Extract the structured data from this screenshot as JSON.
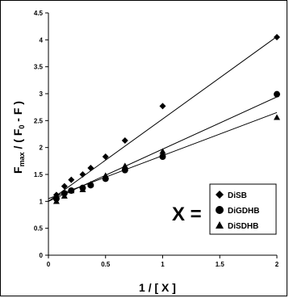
{
  "chart_data": {
    "type": "scatter",
    "xlabel": "1 / [ X ]",
    "ylabel_parts": {
      "f1": "F",
      "f1_sub": "max",
      "mid": " / ( F",
      "f2_sub": "0",
      "end": " - F )"
    },
    "xlim": [
      0,
      2
    ],
    "ylim": [
      0,
      4.5
    ],
    "x_ticks": [
      "0",
      "0.5",
      "1",
      "1.5",
      "2"
    ],
    "y_ticks": [
      "0",
      "0.5",
      "1",
      "1.5",
      "2",
      "2.5",
      "3",
      "3.5",
      "4",
      "4.5"
    ],
    "grid": false,
    "legend_position": "lower-right",
    "legend_prefix": "X =",
    "series": [
      {
        "name": "DiSB",
        "marker": "diamond",
        "points": [
          [
            0.07,
            1.12
          ],
          [
            0.14,
            1.28
          ],
          [
            0.2,
            1.4
          ],
          [
            0.3,
            1.5
          ],
          [
            0.37,
            1.62
          ],
          [
            0.5,
            1.83
          ],
          [
            0.67,
            2.13
          ],
          [
            1.0,
            2.77
          ],
          [
            2.0,
            4.05
          ]
        ],
        "fit": {
          "intercept": 1.0,
          "slope": 1.53
        }
      },
      {
        "name": "DiGDHB",
        "marker": "circle",
        "points": [
          [
            0.07,
            1.05
          ],
          [
            0.14,
            1.15
          ],
          [
            0.2,
            1.2
          ],
          [
            0.3,
            1.25
          ],
          [
            0.37,
            1.3
          ],
          [
            0.5,
            1.42
          ],
          [
            0.67,
            1.58
          ],
          [
            1.0,
            1.83
          ],
          [
            2.0,
            2.99
          ]
        ],
        "fit": {
          "intercept": 1.0,
          "slope": 0.97
        }
      },
      {
        "name": "DiSDHB",
        "marker": "triangle",
        "points": [
          [
            0.07,
            1.0
          ],
          [
            0.14,
            1.1
          ],
          [
            0.2,
            1.2
          ],
          [
            0.3,
            1.22
          ],
          [
            0.37,
            1.32
          ],
          [
            0.5,
            1.48
          ],
          [
            0.67,
            1.66
          ],
          [
            1.0,
            1.93
          ],
          [
            2.0,
            2.56
          ]
        ],
        "fit": {
          "intercept": 1.05,
          "slope": 0.8
        }
      }
    ]
  }
}
